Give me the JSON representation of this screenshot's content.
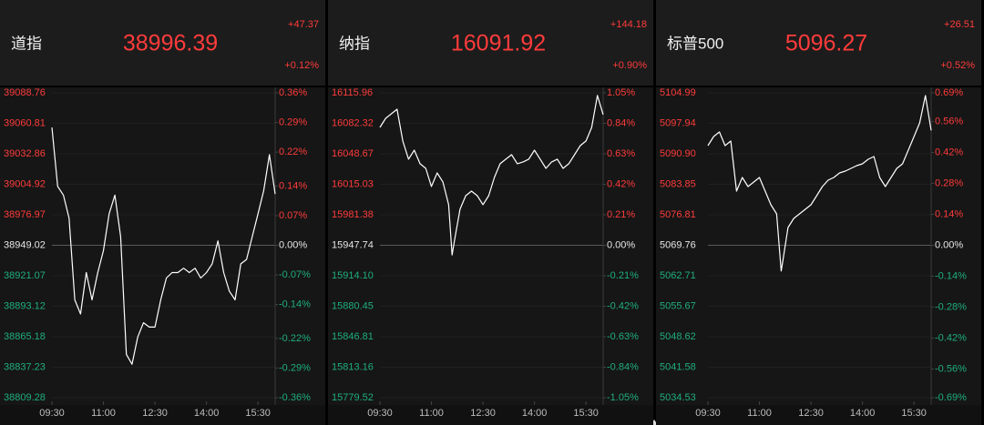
{
  "chart_data": [
    {
      "type": "line",
      "title": "道指",
      "price": 38996.39,
      "change": "+47.37",
      "change_pct": "+0.12%",
      "colors": {
        "up": "#ff3b3b",
        "down": "#1fae7e",
        "flat": "#e6e6e6",
        "line": "#ffffff"
      },
      "grid": true,
      "xlim": [
        0,
        390
      ],
      "xticks": [
        {
          "value": 0,
          "label": "09:30"
        },
        {
          "value": 90,
          "label": "11:00"
        },
        {
          "value": 180,
          "label": "12:30"
        },
        {
          "value": 270,
          "label": "14:00"
        },
        {
          "value": 360,
          "label": "15:30"
        }
      ],
      "ylim": [
        38809.28,
        39088.76
      ],
      "yticks": [
        39088.76,
        39060.81,
        39032.86,
        39004.92,
        38976.97,
        38949.02,
        38921.07,
        38893.12,
        38865.18,
        38837.23,
        38809.28
      ],
      "y2lim": [
        -0.36,
        0.36
      ],
      "y2ticks": [
        {
          "value": 0.36,
          "label": "0.36%"
        },
        {
          "value": 0.29,
          "label": "0.29%"
        },
        {
          "value": 0.22,
          "label": "0.22%"
        },
        {
          "value": 0.14,
          "label": "0.14%"
        },
        {
          "value": 0.07,
          "label": "0.07%"
        },
        {
          "value": 0,
          "label": "0.00%"
        },
        {
          "value": -0.07,
          "label": "-0.07%"
        },
        {
          "value": -0.14,
          "label": "-0.14%"
        },
        {
          "value": -0.22,
          "label": "-0.22%"
        },
        {
          "value": -0.29,
          "label": "-0.29%"
        },
        {
          "value": -0.36,
          "label": "-0.36%"
        }
      ],
      "x": [
        0,
        10,
        20,
        30,
        40,
        50,
        60,
        70,
        80,
        90,
        100,
        110,
        120,
        130,
        140,
        150,
        160,
        170,
        180,
        190,
        200,
        210,
        220,
        230,
        240,
        250,
        260,
        270,
        280,
        290,
        300,
        310,
        320,
        330,
        340,
        350,
        360,
        370,
        380,
        390
      ],
      "values": [
        39057,
        39003,
        38995,
        38974,
        38899,
        38886,
        38924,
        38899,
        38924,
        38944,
        38978,
        38995,
        38957,
        38849,
        38840,
        38865,
        38878,
        38874,
        38874,
        38899,
        38919,
        38924,
        38924,
        38928,
        38924,
        38928,
        38919,
        38924,
        38932,
        38953,
        38924,
        38907,
        38899,
        38932,
        38936,
        38957,
        38978,
        38999,
        39032,
        38996
      ]
    },
    {
      "type": "line",
      "title": "纳指",
      "price": 16091.92,
      "change": "+144.18",
      "change_pct": "+0.90%",
      "colors": {
        "up": "#ff3b3b",
        "down": "#1fae7e",
        "flat": "#e6e6e6",
        "line": "#ffffff"
      },
      "grid": true,
      "xlim": [
        0,
        390
      ],
      "xticks": [
        {
          "value": 0,
          "label": "09:30"
        },
        {
          "value": 90,
          "label": "11:00"
        },
        {
          "value": 180,
          "label": "12:30"
        },
        {
          "value": 270,
          "label": "14:00"
        },
        {
          "value": 360,
          "label": "15:30"
        }
      ],
      "ylim": [
        15779.52,
        16115.96
      ],
      "yticks": [
        16115.96,
        16082.32,
        16048.67,
        16015.03,
        15981.38,
        15947.74,
        {
          "value": 15914.1,
          "label": "15914.10"
        },
        15880.45,
        15846.81,
        15813.16,
        15779.52
      ],
      "y2lim": [
        -1.05,
        1.05
      ],
      "y2ticks": [
        {
          "value": 1.05,
          "label": "1.05%"
        },
        {
          "value": 0.84,
          "label": "0.84%"
        },
        {
          "value": 0.63,
          "label": "0.63%"
        },
        {
          "value": 0.42,
          "label": "0.42%"
        },
        {
          "value": 0.21,
          "label": "0.21%"
        },
        {
          "value": 0,
          "label": "0.00%"
        },
        {
          "value": -0.21,
          "label": "-0.21%"
        },
        {
          "value": -0.42,
          "label": "-0.42%"
        },
        {
          "value": -0.63,
          "label": "-0.63%"
        },
        {
          "value": -0.84,
          "label": "-0.84%"
        },
        {
          "value": -1.05,
          "label": "-1.05%"
        }
      ],
      "x": [
        0,
        10,
        20,
        30,
        40,
        50,
        60,
        70,
        80,
        90,
        100,
        110,
        120,
        126,
        130,
        140,
        150,
        160,
        170,
        180,
        190,
        200,
        210,
        220,
        230,
        240,
        250,
        260,
        270,
        280,
        290,
        300,
        310,
        320,
        330,
        340,
        350,
        360,
        370,
        380,
        390
      ],
      "values": [
        16077.8,
        16087.8,
        16092.9,
        16097.9,
        16062.8,
        16042.7,
        16052.7,
        16037.7,
        16032.6,
        16012.6,
        16027.6,
        16017.6,
        15992.5,
        15937,
        15952.3,
        15987.5,
        16002.5,
        16007.5,
        16002.5,
        15992.5,
        16002.5,
        16022.6,
        16037.7,
        16042.7,
        16047.7,
        16037.7,
        16039.7,
        16042.7,
        16052.7,
        16042.7,
        16032.6,
        16039.7,
        16042.7,
        16032.6,
        16037.7,
        16047.7,
        16057.7,
        16062.8,
        16077.8,
        16113,
        16092
      ]
    },
    {
      "type": "line",
      "title": "标普500",
      "price": 5096.27,
      "change": "+26.51",
      "change_pct": "+0.52%",
      "colors": {
        "up": "#ff3b3b",
        "down": "#1fae7e",
        "flat": "#e6e6e6",
        "line": "#ffffff"
      },
      "grid": true,
      "xlim": [
        0,
        390
      ],
      "xticks": [
        {
          "value": 0,
          "label": "09:30"
        },
        {
          "value": 90,
          "label": "11:00"
        },
        {
          "value": 180,
          "label": "12:30"
        },
        {
          "value": 270,
          "label": "14:00"
        },
        {
          "value": 360,
          "label": "15:30"
        }
      ],
      "ylim": [
        5034.53,
        5104.99
      ],
      "yticks": [
        5104.99,
        5097.94,
        {
          "value": 5090.9,
          "label": "5090.90"
        },
        5083.85,
        5076.81,
        5069.76,
        5062.71,
        5055.67,
        5048.62,
        5041.58,
        5034.53
      ],
      "y2lim": [
        -0.69,
        0.69
      ],
      "y2ticks": [
        {
          "value": 0.69,
          "label": "0.69%"
        },
        {
          "value": 0.56,
          "label": "0.56%"
        },
        {
          "value": 0.42,
          "label": "0.42%"
        },
        {
          "value": 0.28,
          "label": "0.28%"
        },
        {
          "value": 0.14,
          "label": "0.14%"
        },
        {
          "value": 0,
          "label": "0.00%"
        },
        {
          "value": -0.14,
          "label": "-0.14%"
        },
        {
          "value": -0.28,
          "label": "-0.28%"
        },
        {
          "value": -0.42,
          "label": "-0.42%"
        },
        {
          "value": -0.56,
          "label": "-0.56%"
        },
        {
          "value": -0.69,
          "label": "-0.69%"
        }
      ],
      "x": [
        0,
        10,
        20,
        30,
        40,
        50,
        60,
        70,
        80,
        90,
        100,
        110,
        120,
        128,
        130,
        140,
        150,
        160,
        170,
        180,
        190,
        200,
        210,
        220,
        230,
        240,
        250,
        260,
        270,
        280,
        290,
        300,
        310,
        320,
        330,
        340,
        350,
        360,
        370,
        380,
        390
      ],
      "values": [
        5092.79,
        5094.9,
        5095.95,
        5092.79,
        5093.84,
        5082.28,
        5085.43,
        5083.33,
        5084.38,
        5085.43,
        5082.28,
        5079.12,
        5077.02,
        5063.8,
        5065.45,
        5073.87,
        5075.97,
        5077.02,
        5078.07,
        5079.12,
        5081.23,
        5083.33,
        5084.8,
        5085.43,
        5086.48,
        5086.9,
        5087.53,
        5088.17,
        5088.59,
        5089.64,
        5090.27,
        5085.43,
        5083.33,
        5085.43,
        5087.53,
        5088.59,
        5091.74,
        5094.9,
        5098.05,
        5104.36,
        5096.3
      ]
    }
  ]
}
